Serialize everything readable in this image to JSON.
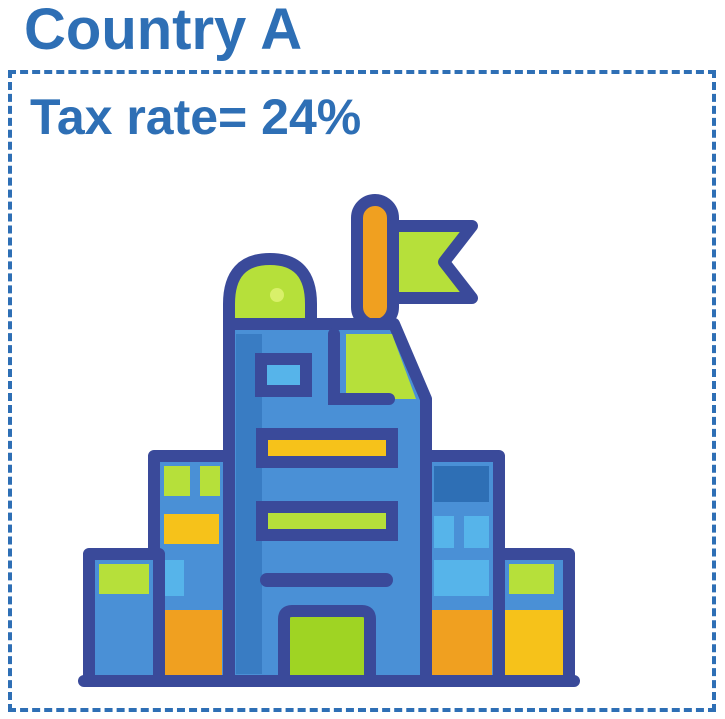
{
  "title": "Country A",
  "tax_label": "Tax rate= 24%",
  "colors": {
    "accent": "#2e6fb5",
    "outline": "#3a4a9a",
    "blue": "#4a90d6",
    "green": "#b6e03a",
    "yellow": "#f6c21a",
    "orange": "#f0a020",
    "light_blue": "#56b4ea"
  },
  "icon": "government-building-with-flag-icon"
}
